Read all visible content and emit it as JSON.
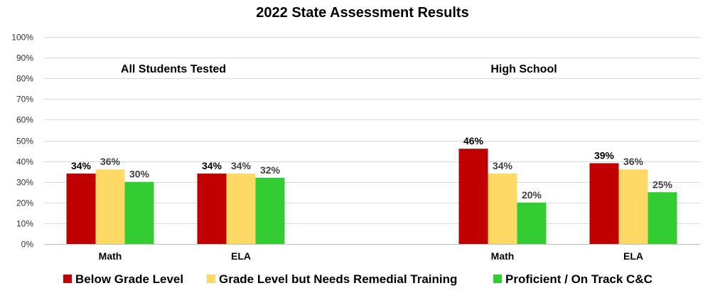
{
  "chart_data": {
    "type": "bar",
    "title": "2022 State Assessment Results",
    "xlabel": "",
    "ylabel": "",
    "ylim": [
      0,
      100
    ],
    "y_ticks": [
      "0%",
      "10%",
      "20%",
      "30%",
      "40%",
      "50%",
      "60%",
      "70%",
      "80%",
      "90%",
      "100%"
    ],
    "groups": [
      "All Students Tested",
      "High School"
    ],
    "categories": [
      "Math",
      "ELA",
      "Math",
      "ELA"
    ],
    "category_group": [
      0,
      0,
      1,
      1
    ],
    "series": [
      {
        "name": "Below Grade Level",
        "color": "#c00000",
        "label_color": "#000000",
        "values": [
          34,
          34,
          46,
          39
        ],
        "labels": [
          "34%",
          "34%",
          "46%",
          "39%"
        ]
      },
      {
        "name": "Grade Level but Needs Remedial Training",
        "color": "#ffd966",
        "label_color": "#404040",
        "values": [
          36,
          34,
          34,
          36
        ],
        "labels": [
          "36%",
          "34%",
          "34%",
          "36%"
        ]
      },
      {
        "name": "Proficient / On Track C&C",
        "color": "#33cc33",
        "label_color": "#404040",
        "values": [
          30,
          32,
          20,
          25
        ],
        "labels": [
          "30%",
          "32%",
          "20%",
          "25%"
        ]
      }
    ],
    "grid": true,
    "legend_position": "bottom"
  }
}
